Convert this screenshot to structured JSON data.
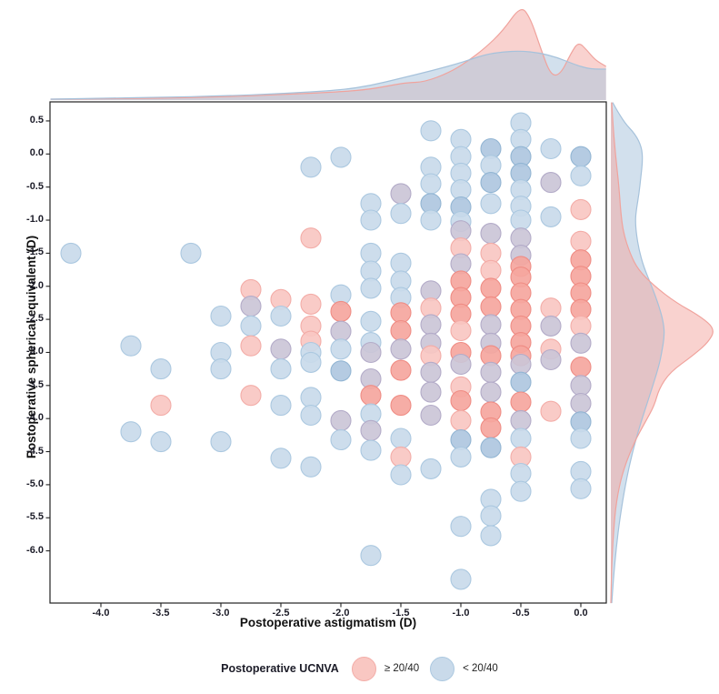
{
  "axes": {
    "x_label": "Postoperative astigmatism (D)",
    "y_label": "Postoperative spherical equivalent (D)",
    "x_tick_labels": [
      "-4.0",
      "-3.5",
      "-3.0",
      "-2.5",
      "-2.0",
      "-1.5",
      "-1.0",
      "-0.5",
      "0.0"
    ],
    "y_tick_labels": [
      "0.5",
      "0.0",
      "-0.5",
      "-1.0",
      "-1.5",
      "-2.0",
      "-2.5",
      "-3.0",
      "-3.5",
      "-4.0",
      "-4.5",
      "-5.0",
      "-5.5",
      "-6.0"
    ]
  },
  "legend": {
    "title": "Postoperative UCNVA",
    "items": [
      {
        "label": "≥ 20/40",
        "group": "ge-20-40"
      },
      {
        "label": "< 20/40",
        "group": "lt-20-40"
      }
    ]
  },
  "colors": {
    "pink_fill": "#F9C7C2",
    "pink_stroke": "#F3ACA7",
    "pink_dark_fill": "#F5A69E",
    "pink_dark_stroke": "#EF8C84",
    "blue_fill": "#C9DAEA",
    "blue_stroke": "#ABC8E0",
    "blue_dark_fill": "#AFC7DF",
    "blue_dark_stroke": "#92B5D3",
    "mixed_fill": "#CBC5D7",
    "mixed_stroke": "#B3ABC8",
    "density_pink_fill": "rgba(243,166,160,0.5)",
    "density_pink_stroke": "#F0A39D",
    "density_blue_fill": "rgba(173,199,223,0.55)",
    "density_blue_stroke": "#A6C2DB",
    "panel_border": "#222222"
  },
  "chart_data": {
    "type": "scatter",
    "title": "",
    "xlabel": "Postoperative astigmatism (D)",
    "ylabel": "Postoperative spherical equivalent (D)",
    "x_ticks": [
      -4.0,
      -3.5,
      -3.0,
      -2.5,
      -2.0,
      -1.5,
      -1.0,
      -0.5,
      0.0
    ],
    "y_ticks": [
      0.5,
      0.0,
      -0.5,
      -1.0,
      -1.5,
      -2.0,
      -2.5,
      -3.0,
      -3.5,
      -4.0,
      -4.5,
      -5.0,
      -5.5,
      -6.0
    ],
    "x_range": [
      -4.42,
      0.21
    ],
    "y_range": [
      -6.79,
      0.78
    ],
    "groups": [
      {
        "name": "≥ 20/40",
        "color": "#F9C7C2"
      },
      {
        "name": "< 20/40",
        "color": "#C9DAEA"
      }
    ],
    "point_classes": {
      "p": "UCNVA >= 20/40 (pink)",
      "P": "UCNVA >= 20/40, overlapping points (dark pink)",
      "b": "UCNVA < 20/40 (blue)",
      "B": "UCNVA < 20/40, overlapping points (dark blue)",
      "m": "overlap of both groups (purple)"
    },
    "points": [
      [
        -4.25,
        -1.5,
        "b"
      ],
      [
        -3.75,
        -2.9,
        "b"
      ],
      [
        -3.75,
        -4.2,
        "b"
      ],
      [
        -3.5,
        -3.25,
        "b"
      ],
      [
        -3.5,
        -3.8,
        "p"
      ],
      [
        -3.5,
        -4.35,
        "b"
      ],
      [
        -3.25,
        -1.5,
        "b"
      ],
      [
        -3.0,
        -2.45,
        "b"
      ],
      [
        -3.0,
        -3.0,
        "b"
      ],
      [
        -3.0,
        -3.25,
        "b"
      ],
      [
        -3.0,
        -4.35,
        "b"
      ],
      [
        -2.75,
        -2.05,
        "p"
      ],
      [
        -2.75,
        -2.3,
        "m"
      ],
      [
        -2.75,
        -2.6,
        "b"
      ],
      [
        -2.75,
        -2.9,
        "p"
      ],
      [
        -2.75,
        -3.65,
        "p"
      ],
      [
        -2.5,
        -2.2,
        "p"
      ],
      [
        -2.5,
        -2.45,
        "b"
      ],
      [
        -2.5,
        -2.95,
        "m"
      ],
      [
        -2.5,
        -3.25,
        "b"
      ],
      [
        -2.5,
        -3.8,
        "b"
      ],
      [
        -2.5,
        -4.6,
        "b"
      ],
      [
        -2.25,
        -0.2,
        "b"
      ],
      [
        -2.25,
        -1.27,
        "p"
      ],
      [
        -2.25,
        -2.27,
        "p"
      ],
      [
        -2.25,
        -2.6,
        "p"
      ],
      [
        -2.25,
        -2.83,
        "p"
      ],
      [
        -2.25,
        -3.0,
        "b"
      ],
      [
        -2.25,
        -3.15,
        "b"
      ],
      [
        -2.25,
        -3.68,
        "b"
      ],
      [
        -2.25,
        -3.95,
        "b"
      ],
      [
        -2.25,
        -4.73,
        "b"
      ],
      [
        -2.0,
        -0.05,
        "b"
      ],
      [
        -2.0,
        -2.13,
        "b"
      ],
      [
        -2.0,
        -2.38,
        "P"
      ],
      [
        -2.0,
        -2.68,
        "m"
      ],
      [
        -2.0,
        -2.95,
        "b"
      ],
      [
        -2.0,
        -3.28,
        "B"
      ],
      [
        -2.0,
        -4.03,
        "m"
      ],
      [
        -2.0,
        -4.32,
        "b"
      ],
      [
        -1.75,
        -0.75,
        "b"
      ],
      [
        -1.75,
        -1.0,
        "b"
      ],
      [
        -1.75,
        -1.5,
        "b"
      ],
      [
        -1.75,
        -1.77,
        "b"
      ],
      [
        -1.75,
        -2.03,
        "b"
      ],
      [
        -1.75,
        -2.53,
        "b"
      ],
      [
        -1.75,
        -2.85,
        "b"
      ],
      [
        -1.75,
        -3.0,
        "m"
      ],
      [
        -1.75,
        -3.4,
        "m"
      ],
      [
        -1.75,
        -3.65,
        "P"
      ],
      [
        -1.75,
        -3.93,
        "b"
      ],
      [
        -1.75,
        -4.18,
        "m"
      ],
      [
        -1.75,
        -4.48,
        "b"
      ],
      [
        -1.75,
        -6.07,
        "b"
      ],
      [
        -1.5,
        -0.6,
        "m"
      ],
      [
        -1.5,
        -0.9,
        "b"
      ],
      [
        -1.5,
        -1.65,
        "b"
      ],
      [
        -1.5,
        -1.92,
        "b"
      ],
      [
        -1.5,
        -2.17,
        "b"
      ],
      [
        -1.5,
        -2.4,
        "P"
      ],
      [
        -1.5,
        -2.67,
        "P"
      ],
      [
        -1.5,
        -2.95,
        "m"
      ],
      [
        -1.5,
        -3.27,
        "P"
      ],
      [
        -1.5,
        -3.8,
        "P"
      ],
      [
        -1.5,
        -4.3,
        "b"
      ],
      [
        -1.5,
        -4.58,
        "p"
      ],
      [
        -1.5,
        -4.85,
        "b"
      ],
      [
        -1.25,
        0.35,
        "b"
      ],
      [
        -1.25,
        -0.2,
        "b"
      ],
      [
        -1.25,
        -0.45,
        "b"
      ],
      [
        -1.25,
        -0.75,
        "B"
      ],
      [
        -1.25,
        -1.0,
        "b"
      ],
      [
        -1.25,
        -2.07,
        "m"
      ],
      [
        -1.25,
        -2.33,
        "p"
      ],
      [
        -1.25,
        -2.58,
        "m"
      ],
      [
        -1.25,
        -2.86,
        "m"
      ],
      [
        -1.25,
        -3.05,
        "p"
      ],
      [
        -1.25,
        -3.3,
        "m"
      ],
      [
        -1.25,
        -3.6,
        "m"
      ],
      [
        -1.25,
        -3.95,
        "m"
      ],
      [
        -1.25,
        -4.76,
        "b"
      ],
      [
        -1.0,
        0.22,
        "b"
      ],
      [
        -1.0,
        -0.04,
        "b"
      ],
      [
        -1.0,
        -0.29,
        "b"
      ],
      [
        -1.0,
        -0.54,
        "b"
      ],
      [
        -1.0,
        -0.8,
        "B"
      ],
      [
        -1.0,
        -1.02,
        "b"
      ],
      [
        -1.0,
        -1.16,
        "m"
      ],
      [
        -1.0,
        -1.42,
        "p"
      ],
      [
        -1.0,
        -1.66,
        "m"
      ],
      [
        -1.0,
        -1.92,
        "P"
      ],
      [
        -1.0,
        -2.17,
        "P"
      ],
      [
        -1.0,
        -2.42,
        "P"
      ],
      [
        -1.0,
        -2.67,
        "p"
      ],
      [
        -1.0,
        -3.0,
        "P"
      ],
      [
        -1.0,
        -3.18,
        "m"
      ],
      [
        -1.0,
        -3.52,
        "p"
      ],
      [
        -1.0,
        -3.73,
        "P"
      ],
      [
        -1.0,
        -4.03,
        "p"
      ],
      [
        -1.0,
        -4.32,
        "B"
      ],
      [
        -1.0,
        -4.58,
        "b"
      ],
      [
        -1.0,
        -5.63,
        "b"
      ],
      [
        -1.0,
        -6.43,
        "b"
      ],
      [
        -0.75,
        0.08,
        "B"
      ],
      [
        -0.75,
        -0.17,
        "b"
      ],
      [
        -0.75,
        -0.43,
        "B"
      ],
      [
        -0.75,
        -0.75,
        "b"
      ],
      [
        -0.75,
        -1.2,
        "m"
      ],
      [
        -0.75,
        -1.5,
        "p"
      ],
      [
        -0.75,
        -1.76,
        "p"
      ],
      [
        -0.75,
        -2.03,
        "P"
      ],
      [
        -0.75,
        -2.31,
        "P"
      ],
      [
        -0.75,
        -2.58,
        "m"
      ],
      [
        -0.75,
        -2.86,
        "m"
      ],
      [
        -0.75,
        -3.05,
        "P"
      ],
      [
        -0.75,
        -3.3,
        "m"
      ],
      [
        -0.75,
        -3.6,
        "m"
      ],
      [
        -0.75,
        -3.9,
        "P"
      ],
      [
        -0.75,
        -4.14,
        "P"
      ],
      [
        -0.75,
        -4.44,
        "B"
      ],
      [
        -0.75,
        -5.22,
        "b"
      ],
      [
        -0.75,
        -5.47,
        "b"
      ],
      [
        -0.75,
        -5.77,
        "b"
      ],
      [
        -0.5,
        0.47,
        "b"
      ],
      [
        -0.5,
        0.22,
        "b"
      ],
      [
        -0.5,
        -0.04,
        "B"
      ],
      [
        -0.5,
        -0.29,
        "B"
      ],
      [
        -0.5,
        -0.54,
        "b"
      ],
      [
        -0.5,
        -0.79,
        "b"
      ],
      [
        -0.5,
        -1.0,
        "b"
      ],
      [
        -0.5,
        -1.27,
        "m"
      ],
      [
        -0.5,
        -1.53,
        "m"
      ],
      [
        -0.5,
        -1.7,
        "P"
      ],
      [
        -0.5,
        -1.86,
        "P"
      ],
      [
        -0.5,
        -2.1,
        "P"
      ],
      [
        -0.5,
        -2.35,
        "P"
      ],
      [
        -0.5,
        -2.6,
        "P"
      ],
      [
        -0.5,
        -2.85,
        "P"
      ],
      [
        -0.5,
        -3.05,
        "P"
      ],
      [
        -0.5,
        -3.18,
        "m"
      ],
      [
        -0.5,
        -3.45,
        "B"
      ],
      [
        -0.5,
        -3.75,
        "P"
      ],
      [
        -0.5,
        -4.03,
        "m"
      ],
      [
        -0.5,
        -4.3,
        "b"
      ],
      [
        -0.5,
        -4.58,
        "p"
      ],
      [
        -0.5,
        -4.83,
        "b"
      ],
      [
        -0.5,
        -5.1,
        "b"
      ],
      [
        -0.25,
        0.08,
        "b"
      ],
      [
        -0.25,
        -0.43,
        "m"
      ],
      [
        -0.25,
        -0.95,
        "b"
      ],
      [
        -0.25,
        -2.33,
        "p"
      ],
      [
        -0.25,
        -2.6,
        "m"
      ],
      [
        -0.25,
        -2.95,
        "p"
      ],
      [
        -0.25,
        -3.11,
        "m"
      ],
      [
        -0.25,
        -3.89,
        "p"
      ],
      [
        0.0,
        -0.04,
        "B"
      ],
      [
        0.0,
        -0.33,
        "b"
      ],
      [
        0.0,
        -0.84,
        "p"
      ],
      [
        0.0,
        -1.32,
        "p"
      ],
      [
        0.0,
        -1.6,
        "P"
      ],
      [
        0.0,
        -1.85,
        "P"
      ],
      [
        0.0,
        -2.1,
        "P"
      ],
      [
        0.0,
        -2.35,
        "P"
      ],
      [
        0.0,
        -2.6,
        "p"
      ],
      [
        0.0,
        -2.86,
        "m"
      ],
      [
        0.0,
        -3.22,
        "P"
      ],
      [
        0.0,
        -3.5,
        "m"
      ],
      [
        0.0,
        -3.77,
        "m"
      ],
      [
        0.0,
        -4.05,
        "B"
      ],
      [
        0.0,
        -4.3,
        "b"
      ],
      [
        0.0,
        -4.8,
        "b"
      ],
      [
        0.0,
        -5.06,
        "b"
      ]
    ],
    "marginal_top": {
      "description": "density of x values per group, height in px above baseline",
      "pink": [
        [
          -4.42,
          1
        ],
        [
          -4.0,
          1.5
        ],
        [
          -3.5,
          2
        ],
        [
          -3.0,
          3.5
        ],
        [
          -2.5,
          6
        ],
        [
          -2.0,
          9
        ],
        [
          -1.75,
          12
        ],
        [
          -1.55,
          17
        ],
        [
          -1.45,
          19
        ],
        [
          -1.3,
          20
        ],
        [
          -1.1,
          30
        ],
        [
          -0.95,
          42
        ],
        [
          -0.8,
          57
        ],
        [
          -0.65,
          76
        ],
        [
          -0.5,
          104
        ],
        [
          -0.42,
          90
        ],
        [
          -0.33,
          55
        ],
        [
          -0.25,
          27
        ],
        [
          -0.17,
          28
        ],
        [
          -0.08,
          52
        ],
        [
          -0.02,
          64
        ],
        [
          0.05,
          55
        ],
        [
          0.12,
          44
        ],
        [
          0.21,
          37
        ]
      ],
      "blue": [
        [
          -4.42,
          1
        ],
        [
          -4.0,
          2
        ],
        [
          -3.5,
          3
        ],
        [
          -3.0,
          4.5
        ],
        [
          -2.5,
          7
        ],
        [
          -2.0,
          11
        ],
        [
          -1.75,
          16
        ],
        [
          -1.5,
          24
        ],
        [
          -1.25,
          32
        ],
        [
          -1.0,
          41
        ],
        [
          -0.8,
          50
        ],
        [
          -0.65,
          53
        ],
        [
          -0.5,
          54
        ],
        [
          -0.35,
          52
        ],
        [
          -0.2,
          47
        ],
        [
          -0.05,
          39
        ],
        [
          0.05,
          35
        ],
        [
          0.12,
          34
        ],
        [
          0.21,
          34
        ]
      ]
    },
    "marginal_right": {
      "description": "density of y values per group, width in px right of baseline",
      "blue": [
        [
          0.78,
          2
        ],
        [
          0.5,
          13
        ],
        [
          0.3,
          27
        ],
        [
          0.1,
          34
        ],
        [
          -0.1,
          35
        ],
        [
          -0.35,
          33
        ],
        [
          -0.6,
          31
        ],
        [
          -0.85,
          28
        ],
        [
          -1.0,
          27
        ],
        [
          -1.2,
          28
        ],
        [
          -1.45,
          31
        ],
        [
          -1.7,
          36
        ],
        [
          -2.0,
          45
        ],
        [
          -2.3,
          53
        ],
        [
          -2.55,
          58
        ],
        [
          -2.75,
          59
        ],
        [
          -3.0,
          56
        ],
        [
          -3.2,
          53
        ],
        [
          -3.6,
          44
        ],
        [
          -4.1,
          32
        ],
        [
          -4.55,
          23
        ],
        [
          -5.0,
          16
        ],
        [
          -5.5,
          10
        ],
        [
          -5.95,
          6
        ],
        [
          -6.4,
          3
        ],
        [
          -6.79,
          1
        ]
      ],
      "pink": [
        [
          0.78,
          1
        ],
        [
          0.5,
          2
        ],
        [
          0.0,
          5
        ],
        [
          -0.5,
          9
        ],
        [
          -0.9,
          11
        ],
        [
          -1.2,
          14
        ],
        [
          -1.5,
          21
        ],
        [
          -1.75,
          30
        ],
        [
          -2.0,
          48
        ],
        [
          -2.25,
          72
        ],
        [
          -2.45,
          98
        ],
        [
          -2.65,
          115
        ],
        [
          -2.85,
          107
        ],
        [
          -3.05,
          90
        ],
        [
          -3.3,
          65
        ],
        [
          -3.55,
          53
        ],
        [
          -3.8,
          48
        ],
        [
          -4.05,
          38
        ],
        [
          -4.35,
          26
        ],
        [
          -4.8,
          13
        ],
        [
          -5.25,
          6
        ],
        [
          -5.7,
          3
        ],
        [
          -6.2,
          1
        ],
        [
          -6.79,
          0
        ]
      ]
    }
  }
}
